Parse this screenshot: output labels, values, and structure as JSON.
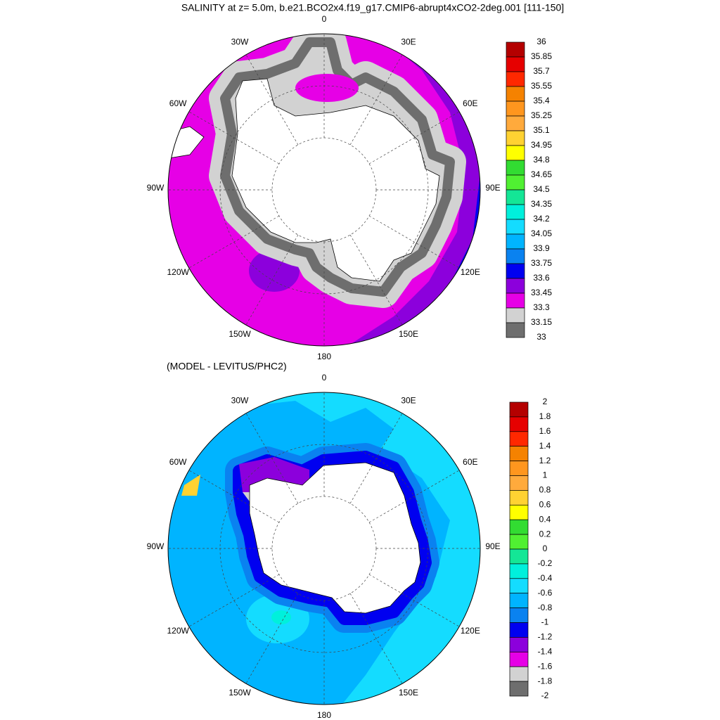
{
  "title": "SALINITY at z=   5.0m, b.e21.BCO2x4.f19_g17.CMIP6-abrupt4xCO2-2deg.001 [111-150]",
  "maps": [
    {
      "lon_labels": [
        "0",
        "30E",
        "60E",
        "90E",
        "120E",
        "150E",
        "180",
        "150W",
        "120W",
        "90W",
        "60W",
        "30W"
      ],
      "colorbar": {
        "labels": [
          "36",
          "35.85",
          "35.7",
          "35.55",
          "35.4",
          "35.25",
          "35.1",
          "34.95",
          "34.8",
          "34.65",
          "34.5",
          "34.35",
          "34.2",
          "34.05",
          "33.9",
          "33.75",
          "33.6",
          "33.45",
          "33.3",
          "33.15",
          "33"
        ]
      }
    },
    {
      "subtitle": "(MODEL - LEVITUS/PHC2)",
      "lon_labels": [
        "0",
        "30E",
        "60E",
        "90E",
        "120E",
        "150E",
        "180",
        "150W",
        "120W",
        "90W",
        "60W",
        "30W"
      ],
      "colorbar": {
        "labels": [
          "2",
          "1.8",
          "1.6",
          "1.4",
          "1.2",
          "1",
          "0.8",
          "0.6",
          "0.4",
          "0.2",
          "0",
          "-0.2",
          "-0.4",
          "-0.6",
          "-0.8",
          "-1",
          "-1.2",
          "-1.4",
          "-1.6",
          "-1.8",
          "-2"
        ]
      }
    }
  ],
  "colorbar_colors": [
    "#b40000",
    "#e60000",
    "#ff2800",
    "#f58200",
    "#ff961e",
    "#ffaa3c",
    "#ffd232",
    "#ffff00",
    "#32dc32",
    "#50f032",
    "#14e696",
    "#00f0dc",
    "#14dcff",
    "#00b4ff",
    "#0a82f0",
    "#0000f0",
    "#8c00dc",
    "#e600e6",
    "#d2d2d2",
    "#6e6e6e"
  ]
}
